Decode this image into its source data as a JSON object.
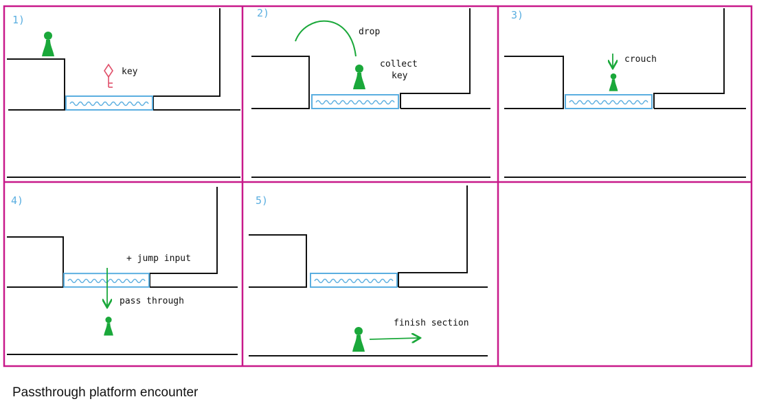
{
  "caption": "Passthrough platform encounter",
  "colors": {
    "frame": "#c8198a",
    "player": "#1aa83a",
    "platform": "#5aaee0",
    "key": "#e0506a",
    "ink": "#111111"
  },
  "icons": {
    "player": "player-pawn-icon",
    "key": "key-icon",
    "platform": "passthrough-platform-icon"
  },
  "panels": [
    {
      "number": "1)",
      "notes": [
        "key"
      ]
    },
    {
      "number": "2)",
      "notes": [
        "drop",
        "collect",
        "key"
      ]
    },
    {
      "number": "3)",
      "notes": [
        "crouch"
      ]
    },
    {
      "number": "4)",
      "notes": [
        "+ jump input",
        "pass through"
      ]
    },
    {
      "number": "5)",
      "notes": [
        "finish section"
      ]
    },
    {
      "number": "",
      "notes": []
    }
  ]
}
